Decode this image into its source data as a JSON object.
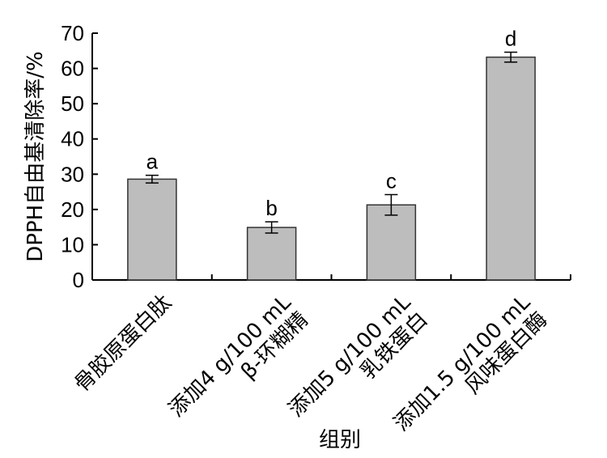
{
  "chart_data": {
    "type": "bar",
    "categories": [
      [
        "骨胶原蛋白肽"
      ],
      [
        "添加4 g/100 mL",
        "β-环糊精"
      ],
      [
        "添加5 g/100 mL",
        "乳铁蛋白"
      ],
      [
        "添加1.5 g/100 mL",
        "风味蛋白酶"
      ]
    ],
    "values": [
      28.6,
      14.9,
      21.3,
      63.2
    ],
    "errors": [
      1.1,
      1.6,
      2.9,
      1.4
    ],
    "significance": [
      "a",
      "b",
      "c",
      "d"
    ],
    "title": "",
    "xlabel": "组别",
    "ylabel": "DPPH自由基清除率/%",
    "ylim": [
      0,
      70
    ],
    "yticks": [
      0,
      10,
      20,
      30,
      40,
      50,
      60,
      70
    ],
    "grid": false,
    "bar_color": "#bdbdbd",
    "edge_color": "#333333"
  }
}
